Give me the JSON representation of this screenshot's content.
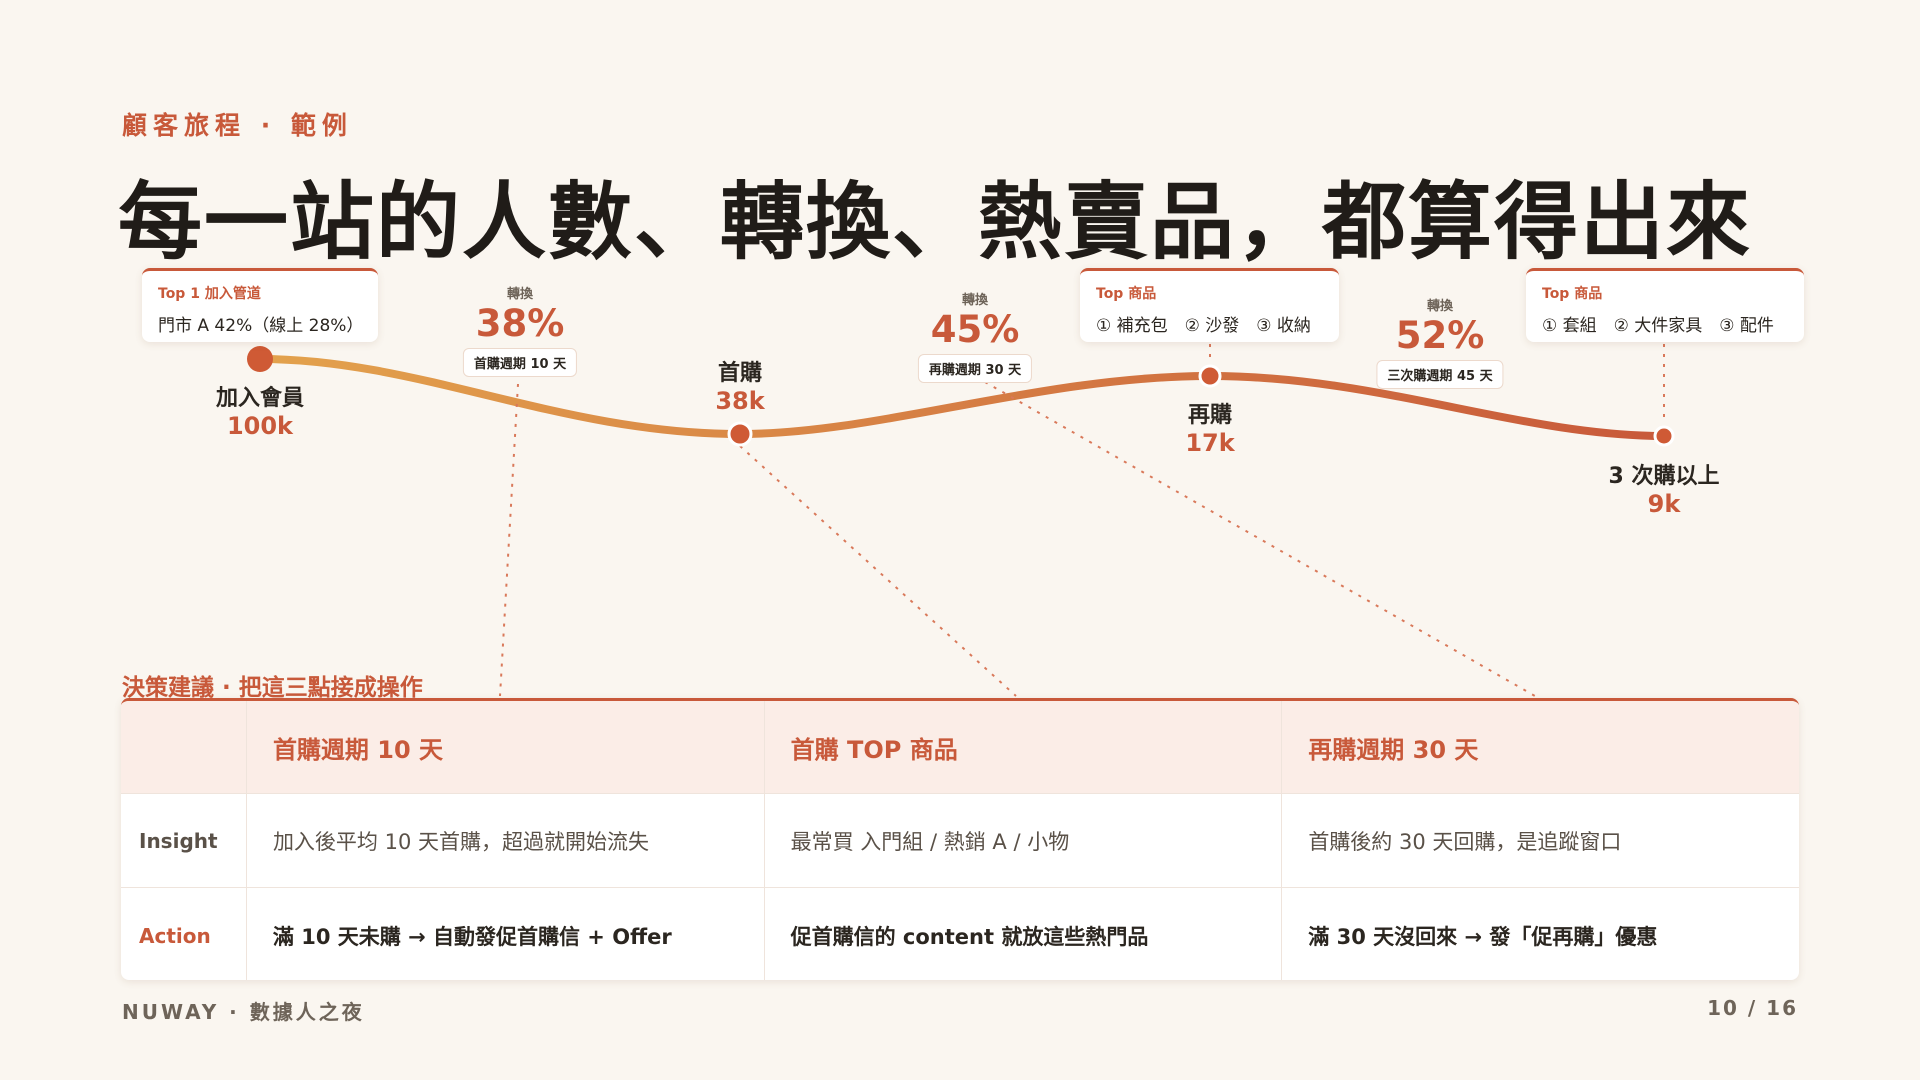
{
  "eyebrow": "顧客旅程 · 範例",
  "title": "每一站的人數、轉換、熱賣品，都算得出來",
  "info_boxes": [
    {
      "label": "Top 1 加入管道",
      "value": "門市 A 42%（線上 28%）"
    },
    {
      "label": "Top 商品",
      "value": "① 補充包　② 沙發　③ 收納"
    },
    {
      "label": "Top 商品",
      "value": "① 套組　② 大件家具　③ 配件"
    }
  ],
  "stages": [
    {
      "name": "加入會員",
      "count": "100k"
    },
    {
      "name": "首購",
      "count": "38k"
    },
    {
      "name": "再購",
      "count": "17k"
    },
    {
      "name": "3 次購以上",
      "count": "9k"
    }
  ],
  "conversions": [
    {
      "label": "轉換",
      "value": "38%",
      "note": "首購週期 10 天"
    },
    {
      "label": "轉換",
      "value": "45%",
      "note": "再購週期 30 天"
    },
    {
      "label": "轉換",
      "value": "52%",
      "note": "三次購週期 45 天"
    }
  ],
  "colors": {
    "accent": "#c8593a",
    "curve_start": "#e3a24d",
    "curve_end": "#c8593a",
    "background": "#faf6f0"
  },
  "decision": {
    "section_label": "決策建議 · 把這三點接成操作",
    "columns": [
      "首購週期 10 天",
      "首購 TOP 商品",
      "再購週期 30 天"
    ],
    "rows": [
      {
        "label": "Insight",
        "cells": [
          "加入後平均 10 天首購，超過就開始流失",
          "最常買 入門組 / 熱銷 A / 小物",
          "首購後約 30 天回購，是追蹤窗口"
        ]
      },
      {
        "label": "Action",
        "cells": [
          "滿 10 天未購 → 自動發促首購信 + Offer",
          "促首購信的 content 就放這些熱門品",
          "滿 30 天沒回來 → 發「促再購」優惠"
        ]
      }
    ]
  },
  "footer": {
    "left": "NUWAY · 數據人之夜",
    "page": "10 / 16"
  }
}
